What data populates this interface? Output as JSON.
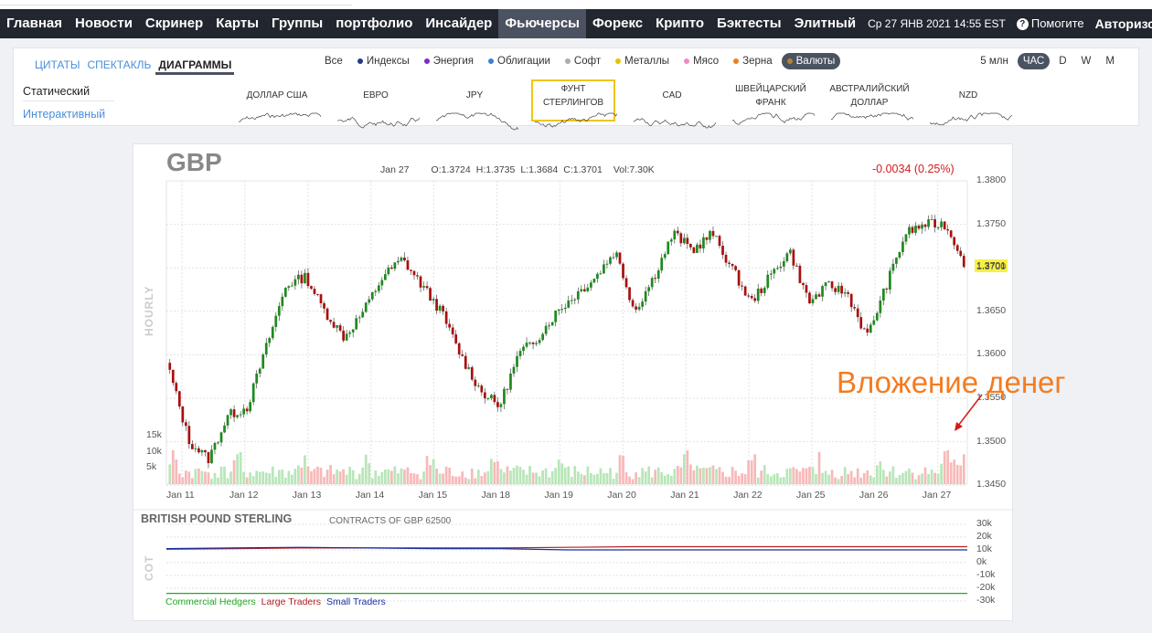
{
  "nav": {
    "items": [
      {
        "label": "Главная",
        "active": false
      },
      {
        "label": "Новости",
        "active": false
      },
      {
        "label": "Скринер",
        "active": false
      },
      {
        "label": "Карты",
        "active": false
      },
      {
        "label": "Группы",
        "active": false
      },
      {
        "label": "портфолио",
        "active": false
      },
      {
        "label": "Инсайдер",
        "active": false
      },
      {
        "label": "Фьючерсы",
        "active": true
      },
      {
        "label": "Форекс",
        "active": false
      },
      {
        "label": "Крипто",
        "active": false
      },
      {
        "label": "Бэктесты",
        "active": false
      },
      {
        "label": "Элитный",
        "active": false
      }
    ],
    "datetime": "Ср 27 ЯНВ 2021 14:55 EST",
    "help": "Помогите",
    "login": "Авторизова"
  },
  "panel": {
    "tabs": [
      {
        "label": "ЦИТАТЫ",
        "active": false
      },
      {
        "label": "СПЕКТАКЛЬ",
        "active": false
      },
      {
        "label": "ДИАГРАММЫ",
        "active": true
      }
    ],
    "filters": [
      {
        "label": "Все",
        "dot": null,
        "active": false
      },
      {
        "label": "Индексы",
        "dot": "#233a8c",
        "active": false
      },
      {
        "label": "Энергия",
        "dot": "#7b2fbf",
        "active": false
      },
      {
        "label": "Облигации",
        "dot": "#3f7fd6",
        "active": false
      },
      {
        "label": "Софт",
        "dot": "#aaaaaa",
        "active": false
      },
      {
        "label": "Металлы",
        "dot": "#e6c200",
        "active": false
      },
      {
        "label": "Мясо",
        "dot": "#f08ac4",
        "active": false
      },
      {
        "label": "Зерна",
        "dot": "#e8821e",
        "active": false
      },
      {
        "label": "Валюты",
        "dot": "#b6852a",
        "active": true
      }
    ],
    "periods": [
      {
        "label": "5 млн",
        "active": false
      },
      {
        "label": "ЧАС",
        "active": true
      },
      {
        "label": "D",
        "active": false
      },
      {
        "label": "W",
        "active": false
      },
      {
        "label": "M",
        "active": false
      }
    ],
    "views": {
      "static": "Статический",
      "interactive": "Интерактивный"
    },
    "thumbs": [
      {
        "line1": "ДОЛЛАР США",
        "line2": "",
        "selected": false
      },
      {
        "line1": "ЕВРО",
        "line2": "",
        "selected": false
      },
      {
        "line1": "JPY",
        "line2": "",
        "selected": false
      },
      {
        "line1": "ФУНТ",
        "line2": "СТЕРЛИНГОВ",
        "selected": true
      },
      {
        "line1": "CAD",
        "line2": "",
        "selected": false
      },
      {
        "line1": "ШВЕЙЦАРСКИЙ",
        "line2": "ФРАНК",
        "selected": false
      },
      {
        "line1": "АВСТРАЛИЙСКИЙ",
        "line2": "ДОЛЛАР",
        "selected": false
      },
      {
        "line1": "NZD",
        "line2": "",
        "selected": false
      }
    ]
  },
  "chart": {
    "ticker": "GBP",
    "ohlc": {
      "date": "Jan 27",
      "open": "O:1.3724",
      "high": "H:1.3735",
      "low": "L:1.3684",
      "close": "C:1.3701",
      "vol": "Vol:7.30K"
    },
    "change": "-0.0034 (0.25%)",
    "side_label": "HOURLY",
    "last_price": "1.3701",
    "price_ticks": [
      "1.3800",
      "1.3750",
      "1.3700",
      "1.3650",
      "1.3600",
      "1.3550",
      "1.3500",
      "1.3450"
    ],
    "volume_ticks": [
      "15k",
      "10k",
      "5k"
    ],
    "dates": [
      "Jan 11",
      "Jan 12",
      "Jan 13",
      "Jan 14",
      "Jan 15",
      "Jan 18",
      "Jan 19",
      "Jan 20",
      "Jan 21",
      "Jan 22",
      "Jan 25",
      "Jan 26",
      "Jan 27"
    ],
    "annotation": "Вложение денег"
  },
  "chart_data": [
    {
      "type": "candlestick",
      "title": "GBP",
      "ylabel": "",
      "ylim": [
        1.344,
        1.38
      ],
      "x": [
        "Jan 11",
        "Jan 12",
        "Jan 13",
        "Jan 14",
        "Jan 15",
        "Jan 18",
        "Jan 19",
        "Jan 20",
        "Jan 21",
        "Jan 22",
        "Jan 25",
        "Jan 26",
        "Jan 27"
      ],
      "path_closes": [
        1.358,
        1.35,
        1.348,
        1.353,
        1.354,
        1.361,
        1.368,
        1.369,
        1.365,
        1.362,
        1.365,
        1.369,
        1.371,
        1.368,
        1.365,
        1.36,
        1.356,
        1.354,
        1.36,
        1.362,
        1.365,
        1.367,
        1.369,
        1.372,
        1.365,
        1.369,
        1.374,
        1.372,
        1.374,
        1.37,
        1.366,
        1.369,
        1.372,
        1.366,
        1.368,
        1.367,
        1.362,
        1.368,
        1.374,
        1.375,
        1.375,
        1.371
      ],
      "last": 1.3701,
      "volume": {
        "ylim": [
          0,
          17000
        ],
        "ticks": [
          5000,
          10000,
          15000
        ]
      }
    },
    {
      "type": "line",
      "title": "BRITISH POUND STERLING",
      "subtitle": "CONTRACTS OF GBP 62500",
      "ylim": [
        -30000,
        30000
      ],
      "yticks": [
        "30k",
        "20k",
        "10k",
        "0k",
        "-10k",
        "-20k",
        "-30k"
      ],
      "series": [
        {
          "name": "Commercial Hedgers",
          "color": "#22aa22",
          "values": [
            -24000,
            -24000,
            -24000,
            -24000,
            -24000,
            -24000,
            -24000,
            -24000,
            -24000,
            -24000,
            -24000,
            -24000,
            -24000
          ]
        },
        {
          "name": "Large Traders",
          "color": "#b22222",
          "values": [
            10500,
            11000,
            11500,
            11500,
            11500,
            11500,
            12000,
            12500,
            12500,
            12500,
            12500,
            12500,
            12500
          ]
        },
        {
          "name": "Small Traders",
          "color": "#1a2f9e",
          "values": [
            11000,
            11500,
            12000,
            11500,
            11000,
            11000,
            10000,
            10000,
            10000,
            10000,
            10000,
            10000,
            10000
          ]
        }
      ]
    }
  ]
}
